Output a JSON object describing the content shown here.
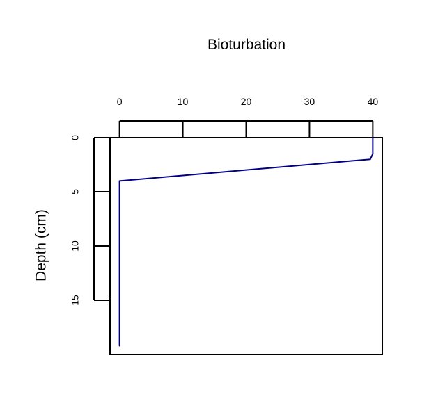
{
  "chart_data": {
    "type": "line",
    "title": "Bioturbation",
    "xlabel": "",
    "ylabel": "Depth (cm)",
    "xlim": [
      -1.5,
      41.5
    ],
    "ylim": [
      0,
      20
    ],
    "y_inverted": true,
    "x_axis_position": "top",
    "grid": false,
    "legend": "none",
    "x_ticks": [
      0,
      10,
      20,
      30,
      40
    ],
    "y_ticks": [
      0,
      5,
      10,
      15
    ],
    "series": [
      {
        "color": "#000080",
        "points": [
          {
            "x": 40,
            "y": 0
          },
          {
            "x": 40,
            "y": 1.5
          },
          {
            "x": 39.6,
            "y": 2.0
          },
          {
            "x": 0,
            "y": 4.0
          },
          {
            "x": 0,
            "y": 19.2
          }
        ]
      }
    ]
  }
}
